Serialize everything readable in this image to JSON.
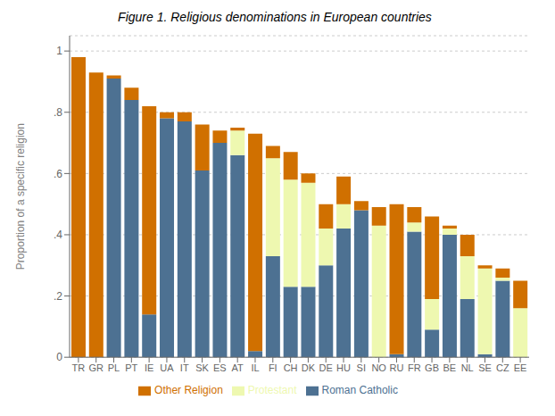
{
  "chart_data": {
    "type": "bar",
    "title": "Figure 1. Religious denominations in European countries",
    "y_label": "Proportion of a specific religion",
    "stacked": true,
    "grid": true,
    "legend": "bottom",
    "categories": [
      "TR",
      "GR",
      "PL",
      "PT",
      "IE",
      "UA",
      "IT",
      "SK",
      "ES",
      "AT",
      "IL",
      "FI",
      "CH",
      "DK",
      "DE",
      "HU",
      "SI",
      "NO",
      "RU",
      "FR",
      "GB",
      "BE",
      "NL",
      "SE",
      "CZ",
      "EE"
    ],
    "series": [
      {
        "name": "Roman Catholic",
        "color": "#4d7192",
        "values": [
          0.0,
          0.0,
          0.91,
          0.84,
          0.14,
          0.78,
          0.77,
          0.61,
          0.7,
          0.66,
          0.02,
          0.33,
          0.23,
          0.23,
          0.3,
          0.42,
          0.48,
          0.0,
          0.01,
          0.41,
          0.09,
          0.4,
          0.19,
          0.01,
          0.25,
          0.0
        ]
      },
      {
        "name": "Protestant",
        "color": "#eef8b0",
        "values": [
          0.0,
          0.0,
          0.0,
          0.0,
          0.0,
          0.0,
          0.0,
          0.0,
          0.0,
          0.08,
          0.0,
          0.32,
          0.35,
          0.34,
          0.12,
          0.08,
          0.0,
          0.43,
          0.0,
          0.03,
          0.1,
          0.02,
          0.14,
          0.28,
          0.01,
          0.16
        ]
      },
      {
        "name": "Other Religion",
        "color": "#d07000",
        "values": [
          0.98,
          0.93,
          0.01,
          0.04,
          0.68,
          0.02,
          0.03,
          0.15,
          0.04,
          0.01,
          0.71,
          0.04,
          0.09,
          0.03,
          0.08,
          0.09,
          0.03,
          0.06,
          0.49,
          0.05,
          0.27,
          0.01,
          0.07,
          0.01,
          0.03,
          0.09
        ]
      }
    ],
    "ylim": [
      0,
      1.05
    ],
    "yticks": [
      0,
      {
        "value": 0.2,
        "label": ".2"
      },
      {
        "value": 0.4,
        "label": ".4"
      },
      {
        "value": 0.6,
        "label": ".6"
      },
      {
        "value": 0.8,
        "label": ".8"
      },
      1
    ]
  }
}
